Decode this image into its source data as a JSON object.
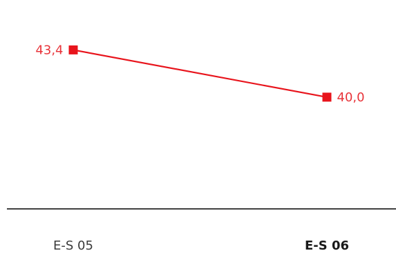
{
  "chart_data": {
    "type": "line",
    "categories": [
      "E-S 05",
      "E-S 06"
    ],
    "series": [
      {
        "values": [
          43.4,
          40.0
        ],
        "value_labels": [
          "43,4",
          "40,0"
        ],
        "color": "#e8141c"
      }
    ],
    "highlight_category": "E-S 06",
    "label_color": "#e8343a",
    "axis_color": "#000000",
    "grid": false,
    "legend": "none",
    "ylim": [
      33.0,
      46.0
    ]
  }
}
